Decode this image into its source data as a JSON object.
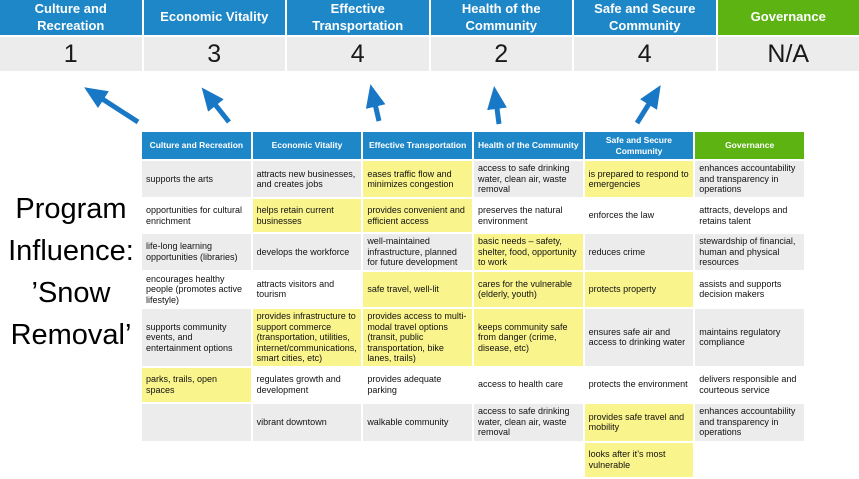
{
  "title": {
    "lines": [
      "Program",
      "Influence:",
      "’Snow",
      "Removal’"
    ]
  },
  "colors": {
    "header_blue": "#1E87C8",
    "header_green": "#5CB312",
    "row_gray": "#ECECEC",
    "highlight_yellow": "#FAF48C",
    "arrow_blue": "#1878C6"
  },
  "scorecard": {
    "columns": [
      {
        "label": "Culture and Recreation",
        "score": "1"
      },
      {
        "label": "Economic Vitality",
        "score": "3"
      },
      {
        "label": "Effective Transportation",
        "score": "4"
      },
      {
        "label": "Health of the Community",
        "score": "2"
      },
      {
        "label": "Safe and Secure Community",
        "score": "4"
      },
      {
        "label": "Governance",
        "score": "N/A"
      }
    ]
  },
  "matrix": {
    "headers": [
      "Culture and Recreation",
      "Economic Vitality",
      "Effective Transportation",
      "Health of the Community",
      "Safe and Secure Community",
      "Governance"
    ],
    "rows": [
      [
        {
          "text": "supports the arts",
          "highlighted": false
        },
        {
          "text": "attracts new businesses, and creates jobs",
          "highlighted": false
        },
        {
          "text": "eases traffic flow and minimizes congestion",
          "highlighted": true
        },
        {
          "text": "access to safe drinking water, clean air, waste removal",
          "highlighted": false
        },
        {
          "text": "is prepared to respond to emergencies",
          "highlighted": true
        },
        {
          "text": "enhances accountability and transparency in operations",
          "highlighted": false
        }
      ],
      [
        {
          "text": "opportunities for cultural enrichment",
          "highlighted": false
        },
        {
          "text": "helps retain current businesses",
          "highlighted": true
        },
        {
          "text": "provides convenient and efficient access",
          "highlighted": true
        },
        {
          "text": "preserves the natural environment",
          "highlighted": false
        },
        {
          "text": "enforces the law",
          "highlighted": false
        },
        {
          "text": "attracts, develops and retains talent",
          "highlighted": false
        }
      ],
      [
        {
          "text": "life-long learning opportunities (libraries)",
          "highlighted": false
        },
        {
          "text": "develops the workforce",
          "highlighted": false
        },
        {
          "text": "well-maintained infrastructure, planned for future development",
          "highlighted": false
        },
        {
          "text": "basic needs – safety, shelter, food, opportunity to work",
          "highlighted": true
        },
        {
          "text": "reduces crime",
          "highlighted": false
        },
        {
          "text": "stewardship of financial, human and physical resources",
          "highlighted": false
        }
      ],
      [
        {
          "text": "encourages healthy people (promotes active lifestyle)",
          "highlighted": false
        },
        {
          "text": "attracts visitors and tourism",
          "highlighted": false
        },
        {
          "text": "safe travel, well-lit",
          "highlighted": true
        },
        {
          "text": "cares for the vulnerable (elderly, youth)",
          "highlighted": true
        },
        {
          "text": "protects property",
          "highlighted": true
        },
        {
          "text": "assists and supports decision makers",
          "highlighted": false
        }
      ],
      [
        {
          "text": "supports community events, and entertainment options",
          "highlighted": false
        },
        {
          "text": "provides infrastructure to support commerce (transportation, utilities, internet/communications, smart cities, etc)",
          "highlighted": true
        },
        {
          "text": "provides access to multi-modal travel options (transit, public transportation, bike lanes, trails)",
          "highlighted": true
        },
        {
          "text": "keeps community safe from danger (crime, disease, etc)",
          "highlighted": true
        },
        {
          "text": "ensures safe air and access to drinking water",
          "highlighted": false
        },
        {
          "text": "maintains regulatory compliance",
          "highlighted": false
        }
      ],
      [
        {
          "text": "parks, trails, open spaces",
          "highlighted": true
        },
        {
          "text": "regulates growth and development",
          "highlighted": false
        },
        {
          "text": "provides adequate parking",
          "highlighted": false
        },
        {
          "text": "access to health care",
          "highlighted": false
        },
        {
          "text": "protects the environment",
          "highlighted": false
        },
        {
          "text": "delivers responsible and courteous service",
          "highlighted": false
        }
      ],
      [
        {
          "text": "",
          "highlighted": false
        },
        {
          "text": "vibrant downtown",
          "highlighted": false
        },
        {
          "text": "walkable community",
          "highlighted": false
        },
        {
          "text": "access to safe drinking water, clean air, waste removal",
          "highlighted": false
        },
        {
          "text": "provides safe travel and mobility",
          "highlighted": true
        },
        {
          "text": "enhances accountability and transparency in operations",
          "highlighted": false
        }
      ],
      [
        {
          "text": "",
          "highlighted": false
        },
        {
          "text": "",
          "highlighted": false
        },
        {
          "text": "",
          "highlighted": false
        },
        {
          "text": "",
          "highlighted": false
        },
        {
          "text": "looks after it’s most vulnerable",
          "highlighted": true
        },
        {
          "text": "",
          "highlighted": false
        }
      ]
    ]
  }
}
